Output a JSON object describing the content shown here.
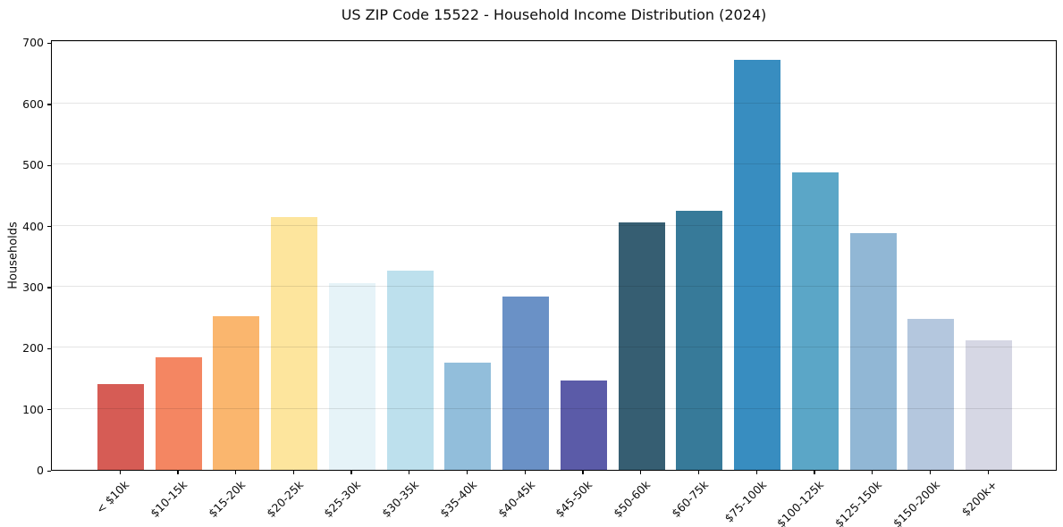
{
  "title": "US ZIP Code 15522 - Household Income Distribution (2024)",
  "chart_data": {
    "type": "bar",
    "title": "US ZIP Code 15522 - Household Income Distribution (2024)",
    "xlabel": "",
    "ylabel": "Households",
    "categories": [
      "< $10k",
      "$10-15k",
      "$15-20k",
      "$20-25k",
      "$25-30k",
      "$30-35k",
      "$35-40k",
      "$40-45k",
      "$45-50k",
      "$50-60k",
      "$60-75k",
      "$75-100k",
      "$100-125k",
      "$125-150k",
      "$150-200k",
      "$200k+"
    ],
    "values": [
      141,
      184,
      251,
      414,
      305,
      326,
      176,
      284,
      146,
      405,
      424,
      671,
      487,
      388,
      247,
      212
    ],
    "bar_colors": [
      "#d65c55",
      "#f48662",
      "#fab66e",
      "#fde59d",
      "#e6f3f8",
      "#bde0ed",
      "#92bedb",
      "#6a91c6",
      "#5b5ba8",
      "#365e72",
      "#377a99",
      "#388dc0",
      "#5ba6c7",
      "#91b7d5",
      "#b4c7de",
      "#d6d7e4"
    ],
    "ylim": [
      0,
      705
    ],
    "yticks": [
      0,
      100,
      200,
      300,
      400,
      500,
      600,
      700
    ],
    "grid": "horizontal",
    "legend": "none",
    "x_tick_rotation": 45
  },
  "colors": {
    "background": "#ffffff",
    "spine": "#000000",
    "grid": "rgba(0,0,0,0.10)",
    "text": "#0d0d0d"
  }
}
